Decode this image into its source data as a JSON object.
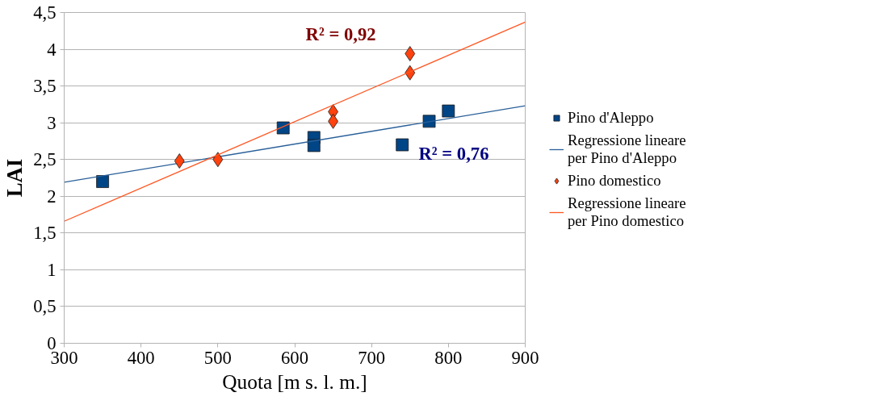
{
  "chart_data": {
    "type": "scatter",
    "xlabel": "Quota [m s. l. m.]",
    "ylabel": "LAI",
    "xlim": [
      300,
      900
    ],
    "xticks": [
      300,
      400,
      500,
      600,
      700,
      800,
      900
    ],
    "ylim": [
      0,
      4.5
    ],
    "yticks": [
      0,
      {
        "value": 0.5,
        "label": "0,5"
      },
      1,
      {
        "value": 1.5,
        "label": "1,5"
      },
      2,
      {
        "value": 2.5,
        "label": "2,5"
      },
      3,
      {
        "value": 3.5,
        "label": "3,5"
      },
      4,
      {
        "value": 4.5,
        "label": "4,5"
      }
    ],
    "grid": "y",
    "legend": "right",
    "series": [
      {
        "name": "Pino d'Aleppo",
        "marker": "square",
        "color": "#004586",
        "x": [
          350,
          585,
          625,
          625,
          740,
          775,
          800
        ],
        "values": [
          2.2,
          2.93,
          2.8,
          2.69,
          2.7,
          3.02,
          3.16
        ]
      },
      {
        "name": "Regressione lineare per Pino d'Aleppo",
        "type": "line",
        "color": "#2a6099",
        "x": [
          300,
          900
        ],
        "values": [
          2.19,
          3.23
        ]
      },
      {
        "name": "Pino domestico",
        "marker": "diamond",
        "color": "#ff420e",
        "x": [
          450,
          500,
          650,
          650,
          750,
          750
        ],
        "values": [
          2.48,
          2.5,
          3.15,
          3.02,
          3.94,
          3.68
        ]
      },
      {
        "name": "Regressione lineare per Pino domestico",
        "type": "line",
        "color": "#ff5722",
        "x": [
          300,
          900
        ],
        "values": [
          1.66,
          4.37
        ]
      }
    ],
    "annotations": [
      "R² = 0,92",
      "R² = 0,76"
    ]
  }
}
